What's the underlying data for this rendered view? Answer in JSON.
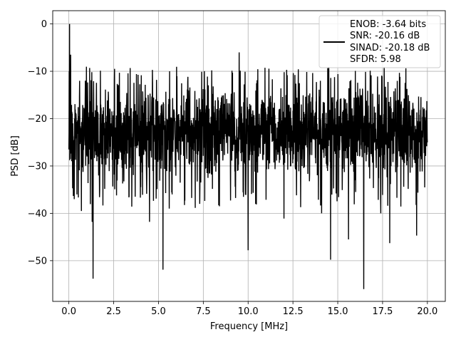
{
  "chart_data": {
    "type": "line",
    "title": "",
    "xlabel": "Frequency [MHz]",
    "ylabel": "PSD [dB]",
    "xlim": [
      -0.9,
      21.0
    ],
    "ylim": [
      -58.6,
      2.8
    ],
    "x_ticks": [
      0.0,
      2.5,
      5.0,
      7.5,
      10.0,
      12.5,
      15.0,
      17.5,
      20.0
    ],
    "x_tick_labels": [
      "0.0",
      "2.5",
      "5.0",
      "7.5",
      "10.0",
      "12.5",
      "15.0",
      "17.5",
      "20.0"
    ],
    "y_ticks": [
      0,
      -10,
      -20,
      -30,
      -40,
      -50
    ],
    "y_tick_labels": [
      "0",
      "−10",
      "−20",
      "−30",
      "−40",
      "−50"
    ],
    "grid": true,
    "legend_position": "top-right",
    "legend_lines": [
      "ENOB: -3.64 bits",
      "SNR: -20.16 dB",
      "SINAD: -20.18 dB",
      "SFDR: 5.98"
    ],
    "series": [
      {
        "color": "#000000",
        "x_range": [
          0.0,
          20.0
        ],
        "notes_free": true,
        "key_points": [
          {
            "x": 0.0,
            "y": -26.5
          },
          {
            "x": 0.02,
            "y": -10.0
          },
          {
            "x": 0.04,
            "y": 0.0
          },
          {
            "x": 0.07,
            "y": -15.0
          },
          {
            "x": 0.1,
            "y": -6.5
          },
          {
            "x": 0.14,
            "y": -21.0
          },
          {
            "x": 0.3,
            "y": -37.0
          },
          {
            "x": 0.45,
            "y": -36.0
          },
          {
            "x": 0.7,
            "y": -39.5
          },
          {
            "x": 0.6,
            "y": -12.0
          },
          {
            "x": 1.3,
            "y": -41.8
          },
          {
            "x": 1.35,
            "y": -53.8
          },
          {
            "x": 3.7,
            "y": -36.5
          },
          {
            "x": 4.5,
            "y": -41.8
          },
          {
            "x": 5.25,
            "y": -51.9
          },
          {
            "x": 5.6,
            "y": -39.0
          },
          {
            "x": 7.3,
            "y": -38.0
          },
          {
            "x": 8.4,
            "y": -38.5
          },
          {
            "x": 9.5,
            "y": -6.0
          },
          {
            "x": 10.0,
            "y": -47.8
          },
          {
            "x": 12.0,
            "y": -41.1
          },
          {
            "x": 14.1,
            "y": -40.0
          },
          {
            "x": 14.6,
            "y": -49.8
          },
          {
            "x": 15.6,
            "y": -45.5
          },
          {
            "x": 16.45,
            "y": -56.0
          },
          {
            "x": 17.4,
            "y": -40.0
          },
          {
            "x": 17.9,
            "y": -46.3
          },
          {
            "x": 19.4,
            "y": -44.7
          },
          {
            "x": 20.0,
            "y": -25.0
          }
        ],
        "typical_band": [
          -33.0,
          -13.0
        ]
      }
    ]
  }
}
